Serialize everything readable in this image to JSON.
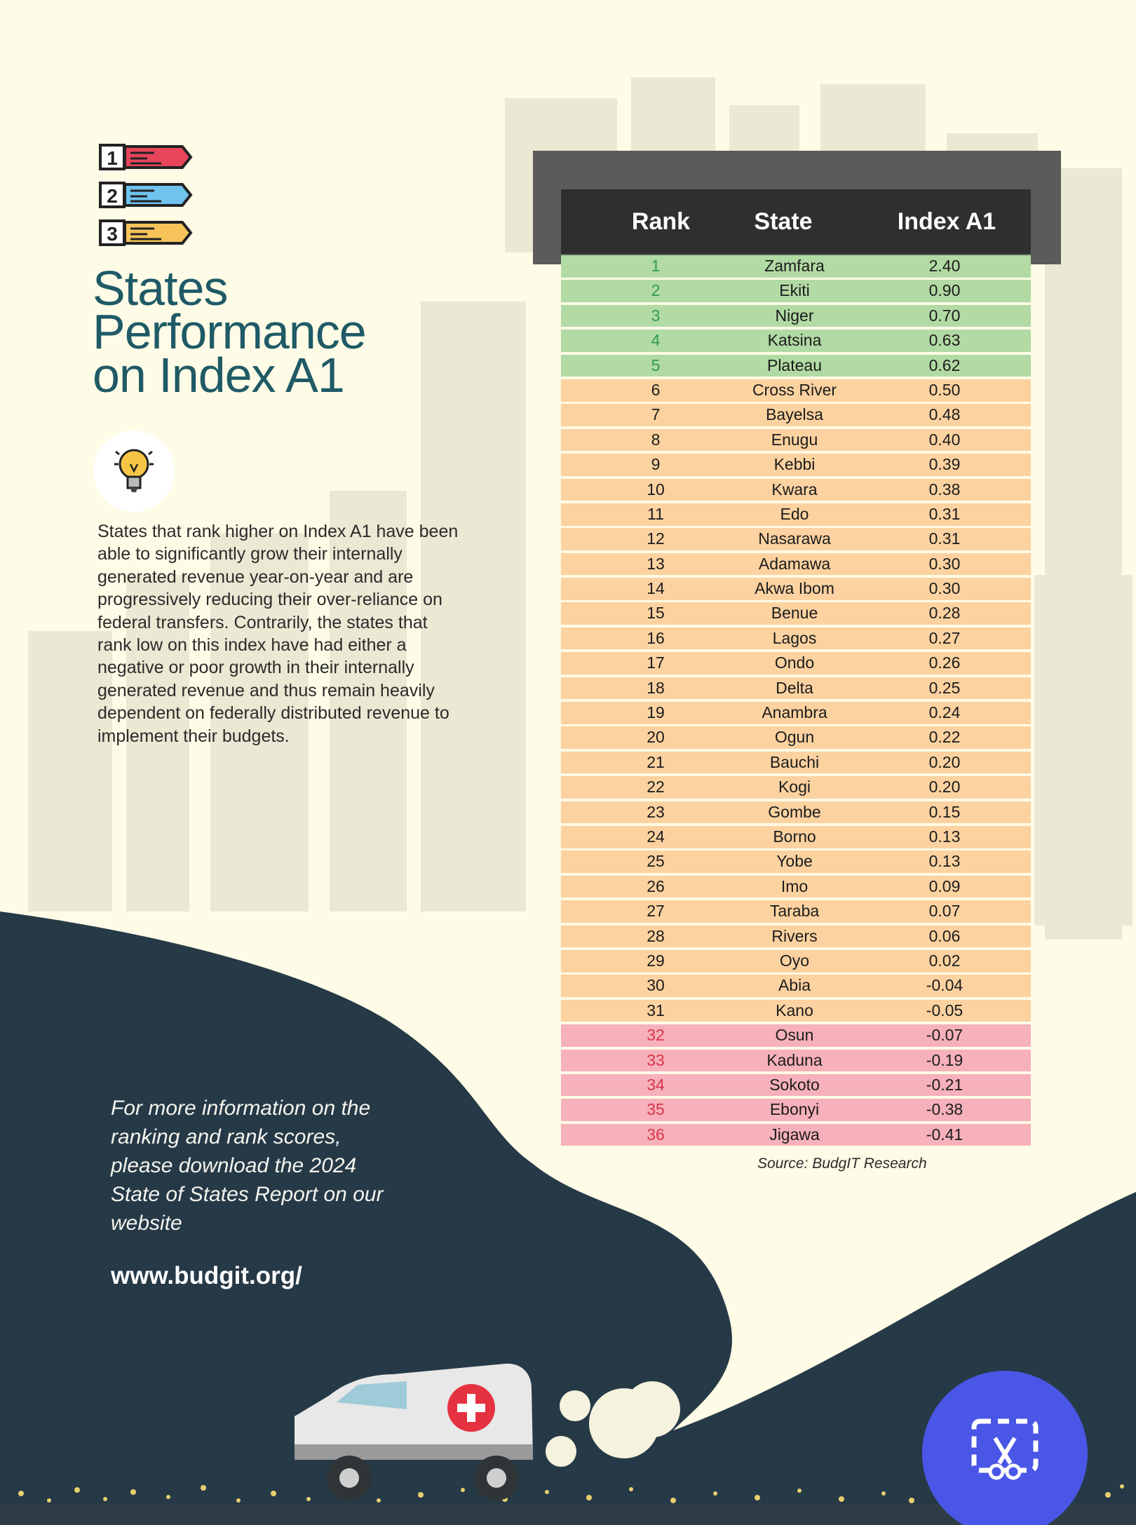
{
  "colors": {
    "background": "#fefbe6",
    "title": "#1f5a66",
    "dark_wave": "#263947",
    "top_rows": "#b2daa4",
    "middle_rows": "#fcd2a0",
    "bottom_rows": "#f6b1ba",
    "accent_button": "#4a56e6"
  },
  "rank_icons": [
    {
      "number": "1",
      "color": "#e8445a"
    },
    {
      "number": "2",
      "color": "#6fc3ee"
    },
    {
      "number": "3",
      "color": "#f6c45a"
    }
  ],
  "title_lines": [
    "States",
    "Performance",
    "on Index A1"
  ],
  "bulb_icon": "lightbulb-icon",
  "description": "States that rank higher on Index A1 have been able to significantly grow their internally generated revenue year-on-year and are progressively reducing their over-reliance on federal transfers. Contrarily, the states that rank low on this index have had either a negative or poor growth in their internally generated revenue and thus remain heavily dependent on federally distributed revenue to implement their budgets.",
  "more_info": "For more information on the ranking and rank scores, please download the 2024 State of States Report on our website",
  "website": "www.budgit.org/",
  "table": {
    "headers": {
      "rank": "Rank",
      "state": "State",
      "index": "Index A1"
    },
    "rows": [
      {
        "rank": "1",
        "state": "Zamfara",
        "index": "2.40",
        "tier": "green"
      },
      {
        "rank": "2",
        "state": "Ekiti",
        "index": "0.90",
        "tier": "green"
      },
      {
        "rank": "3",
        "state": "Niger",
        "index": "0.70",
        "tier": "green"
      },
      {
        "rank": "4",
        "state": "Katsina",
        "index": "0.63",
        "tier": "green"
      },
      {
        "rank": "5",
        "state": "Plateau",
        "index": "0.62",
        "tier": "green"
      },
      {
        "rank": "6",
        "state": "Cross River",
        "index": "0.50",
        "tier": "orange"
      },
      {
        "rank": "7",
        "state": "Bayelsa",
        "index": "0.48",
        "tier": "orange"
      },
      {
        "rank": "8",
        "state": "Enugu",
        "index": "0.40",
        "tier": "orange"
      },
      {
        "rank": "9",
        "state": "Kebbi",
        "index": "0.39",
        "tier": "orange"
      },
      {
        "rank": "10",
        "state": "Kwara",
        "index": "0.38",
        "tier": "orange"
      },
      {
        "rank": "11",
        "state": "Edo",
        "index": "0.31",
        "tier": "orange"
      },
      {
        "rank": "12",
        "state": "Nasarawa",
        "index": "0.31",
        "tier": "orange"
      },
      {
        "rank": "13",
        "state": "Adamawa",
        "index": "0.30",
        "tier": "orange"
      },
      {
        "rank": "14",
        "state": "Akwa Ibom",
        "index": "0.30",
        "tier": "orange"
      },
      {
        "rank": "15",
        "state": "Benue",
        "index": "0.28",
        "tier": "orange"
      },
      {
        "rank": "16",
        "state": "Lagos",
        "index": "0.27",
        "tier": "orange"
      },
      {
        "rank": "17",
        "state": "Ondo",
        "index": "0.26",
        "tier": "orange"
      },
      {
        "rank": "18",
        "state": "Delta",
        "index": "0.25",
        "tier": "orange"
      },
      {
        "rank": "19",
        "state": "Anambra",
        "index": "0.24",
        "tier": "orange"
      },
      {
        "rank": "20",
        "state": "Ogun",
        "index": "0.22",
        "tier": "orange"
      },
      {
        "rank": "21",
        "state": "Bauchi",
        "index": "0.20",
        "tier": "orange"
      },
      {
        "rank": "22",
        "state": "Kogi",
        "index": "0.20",
        "tier": "orange"
      },
      {
        "rank": "23",
        "state": "Gombe",
        "index": "0.15",
        "tier": "orange"
      },
      {
        "rank": "24",
        "state": "Borno",
        "index": "0.13",
        "tier": "orange"
      },
      {
        "rank": "25",
        "state": "Yobe",
        "index": "0.13",
        "tier": "orange"
      },
      {
        "rank": "26",
        "state": "Imo",
        "index": "0.09",
        "tier": "orange"
      },
      {
        "rank": "27",
        "state": "Taraba",
        "index": "0.07",
        "tier": "orange"
      },
      {
        "rank": "28",
        "state": "Rivers",
        "index": "0.06",
        "tier": "orange"
      },
      {
        "rank": "29",
        "state": "Oyo",
        "index": "0.02",
        "tier": "orange"
      },
      {
        "rank": "30",
        "state": "Abia",
        "index": "-0.04",
        "tier": "orange"
      },
      {
        "rank": "31",
        "state": "Kano",
        "index": "-0.05",
        "tier": "orange"
      },
      {
        "rank": "32",
        "state": "Osun",
        "index": "-0.07",
        "tier": "pink"
      },
      {
        "rank": "33",
        "state": "Kaduna",
        "index": "-0.19",
        "tier": "pink"
      },
      {
        "rank": "34",
        "state": "Sokoto",
        "index": "-0.21",
        "tier": "pink"
      },
      {
        "rank": "35",
        "state": "Ebonyi",
        "index": "-0.38",
        "tier": "pink"
      },
      {
        "rank": "36",
        "state": "Jigawa",
        "index": "-0.41",
        "tier": "pink"
      }
    ]
  },
  "source": "Source: BudgIT Research",
  "screenshot_button": {
    "icon": "screenshot-scissors-icon"
  }
}
